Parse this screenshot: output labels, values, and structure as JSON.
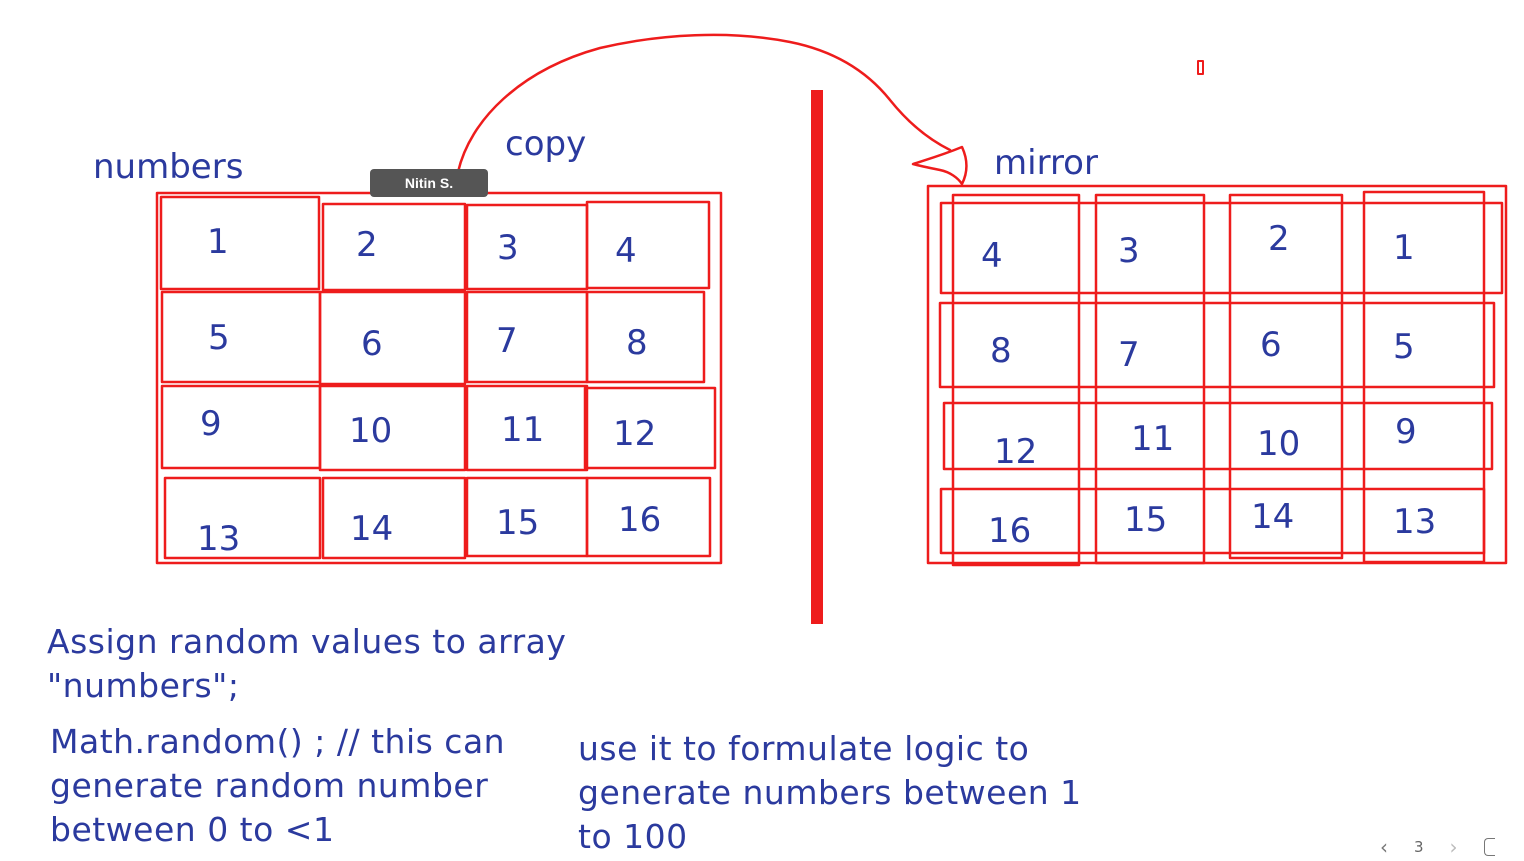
{
  "labels": {
    "numbers": "numbers",
    "copy": "copy",
    "mirror": "mirror"
  },
  "tooltip": {
    "author": "Nitin S."
  },
  "numbers_grid": [
    [
      "1",
      "2",
      "3",
      "4"
    ],
    [
      "5",
      "6",
      "7",
      "8"
    ],
    [
      "9",
      "10",
      "11",
      "12"
    ],
    [
      "13",
      "14",
      "15",
      "16"
    ]
  ],
  "mirror_grid": [
    [
      "4",
      "3",
      "2",
      "1"
    ],
    [
      "8",
      "7",
      "6",
      "5"
    ],
    [
      "12",
      "11",
      "10",
      "9"
    ],
    [
      "16",
      "15",
      "14",
      "13"
    ]
  ],
  "notes": {
    "assign": [
      "Assign random values to array",
      "\"numbers\";"
    ],
    "math_random": [
      "Math.random() ; // this can",
      "generate random number",
      "between 0 to <1"
    ],
    "use_it": [
      "use it to formulate logic to",
      "generate numbers between 1",
      "to 100"
    ]
  },
  "pager": {
    "page": "3"
  },
  "colors": {
    "ink_blue": "#2b3a9e",
    "ink_red": "#ee1c1c",
    "tooltip_bg": "#555555"
  }
}
